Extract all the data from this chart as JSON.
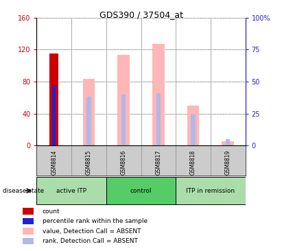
{
  "title": "GDS390 / 37504_at",
  "samples": [
    "GSM8814",
    "GSM8815",
    "GSM8816",
    "GSM8817",
    "GSM8818",
    "GSM8819"
  ],
  "count_values": [
    115,
    0,
    0,
    0,
    0,
    0
  ],
  "percentile_values": [
    47,
    0,
    0,
    0,
    0,
    0
  ],
  "absent_value_bars": [
    0,
    83,
    113,
    127,
    50,
    5
  ],
  "absent_rank_bars": [
    0,
    38,
    40,
    41,
    25,
    5
  ],
  "absent_value_color": "#ffb6b6",
  "absent_rank_color": "#b0b8e8",
  "count_color": "#cc0000",
  "percentile_color": "#2222cc",
  "ylim_left": [
    0,
    160
  ],
  "ylim_right": [
    0,
    100
  ],
  "yticks_left": [
    0,
    40,
    80,
    120,
    160
  ],
  "yticks_right": [
    0,
    25,
    50,
    75,
    100
  ],
  "yticklabels_left": [
    "0",
    "40",
    "80",
    "120",
    "160"
  ],
  "yticklabels_right": [
    "0",
    "25",
    "50",
    "75",
    "100%"
  ],
  "left_axis_color": "#cc0000",
  "right_axis_color": "#2222cc",
  "bg_color": "#ffffff",
  "sample_box_color": "#cccccc",
  "group_defs": [
    {
      "start": 0,
      "end": 1,
      "label": "active ITP",
      "color": "#aaddaa"
    },
    {
      "start": 2,
      "end": 3,
      "label": "control",
      "color": "#55cc66"
    },
    {
      "start": 4,
      "end": 5,
      "label": "ITP in remission",
      "color": "#aaddaa"
    }
  ],
  "legend_items": [
    {
      "label": "count",
      "color": "#cc0000"
    },
    {
      "label": "percentile rank within the sample",
      "color": "#2222cc"
    },
    {
      "label": "value, Detection Call = ABSENT",
      "color": "#ffb6b6"
    },
    {
      "label": "rank, Detection Call = ABSENT",
      "color": "#b0b8e8"
    }
  ],
  "disease_state_label": "disease state"
}
